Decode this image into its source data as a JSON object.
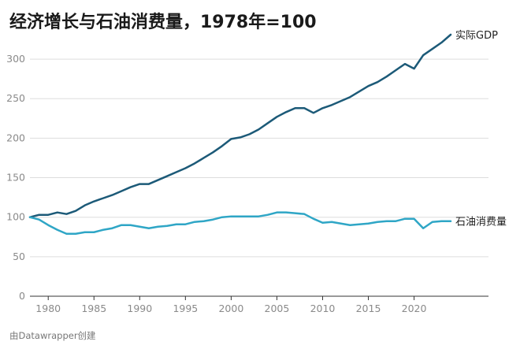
{
  "title": "经济增长与石油消费量，1978年=100",
  "footer": "由Datawrapper创建",
  "colors": {
    "gdp": "#1c5a78",
    "oil": "#2fa6c6",
    "grid": "#dddddd",
    "baseline": "#333333"
  },
  "chart_data": {
    "type": "line",
    "title": "经济增长与石油消费量，1978年=100",
    "x_ticks": [
      1980,
      1985,
      1990,
      1995,
      2000,
      2005,
      2010,
      2015,
      2020
    ],
    "y_ticks": [
      0,
      50,
      100,
      150,
      200,
      250,
      300
    ],
    "xlim": [
      1978,
      2024
    ],
    "ylim": [
      0,
      330
    ],
    "grid": true,
    "x": [
      1978,
      1979,
      1980,
      1981,
      1982,
      1983,
      1984,
      1985,
      1986,
      1987,
      1988,
      1989,
      1990,
      1991,
      1992,
      1993,
      1994,
      1995,
      1996,
      1997,
      1998,
      1999,
      2000,
      2001,
      2002,
      2003,
      2004,
      2005,
      2006,
      2007,
      2008,
      2009,
      2010,
      2011,
      2012,
      2013,
      2014,
      2015,
      2016,
      2017,
      2018,
      2019,
      2020,
      2021,
      2022,
      2023,
      2024
    ],
    "series": [
      {
        "name": "实际GDP",
        "values": [
          100,
          103,
          103,
          106,
          104,
          108,
          115,
          120,
          124,
          128,
          133,
          138,
          142,
          142,
          147,
          152,
          157,
          162,
          168,
          175,
          182,
          190,
          199,
          201,
          205,
          211,
          219,
          227,
          233,
          238,
          238,
          232,
          238,
          242,
          247,
          252,
          259,
          266,
          271,
          278,
          286,
          294,
          288,
          305,
          313,
          321,
          331
        ]
      },
      {
        "name": "石油消费量",
        "values": [
          100,
          97,
          90,
          84,
          79,
          79,
          81,
          81,
          84,
          86,
          90,
          90,
          88,
          86,
          88,
          89,
          91,
          91,
          94,
          95,
          97,
          100,
          101,
          101,
          101,
          101,
          103,
          106,
          106,
          105,
          104,
          98,
          93,
          94,
          92,
          90,
          91,
          92,
          94,
          95,
          95,
          98,
          98,
          86,
          94,
          95,
          95
        ]
      }
    ]
  }
}
